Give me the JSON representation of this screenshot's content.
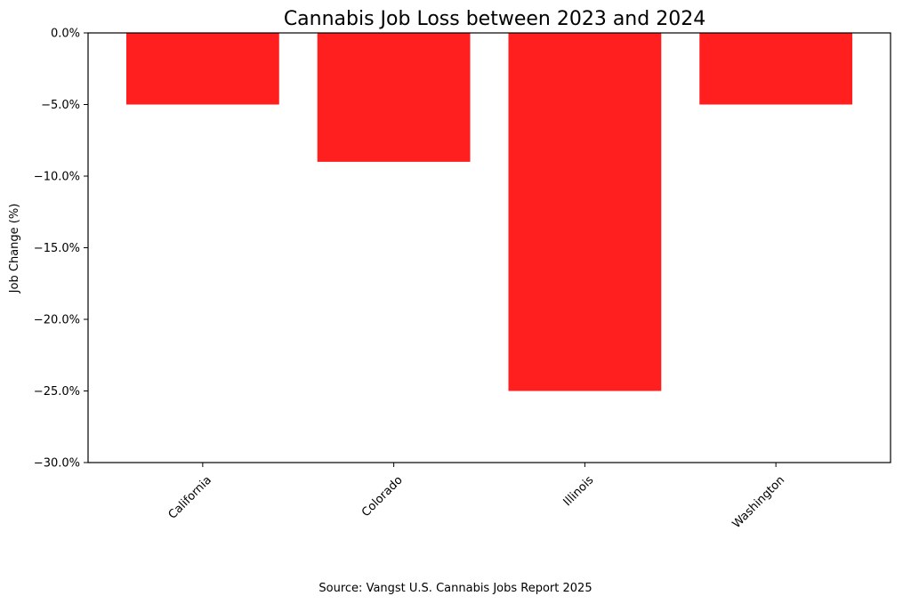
{
  "chart_data": {
    "type": "bar",
    "title": "Cannabis Job Loss between 2023 and 2024",
    "xlabel": "",
    "ylabel": "Job Change (%)",
    "categories": [
      "California",
      "Colorado",
      "Illinois",
      "Washington"
    ],
    "values": [
      -5,
      -9,
      -25,
      -5
    ],
    "ylim": [
      -30,
      0
    ],
    "yticks": [
      0,
      -5,
      -10,
      -15,
      -20,
      -25,
      -30
    ],
    "ytick_labels": [
      "0.0%",
      "−5.0%",
      "−10.0%",
      "−15.0%",
      "−20.0%",
      "−25.0%",
      "−30.0%"
    ],
    "bar_color": "#ff1f1f",
    "grid": false,
    "source": "Source: Vangst U.S. Cannabis Jobs Report 2025"
  }
}
